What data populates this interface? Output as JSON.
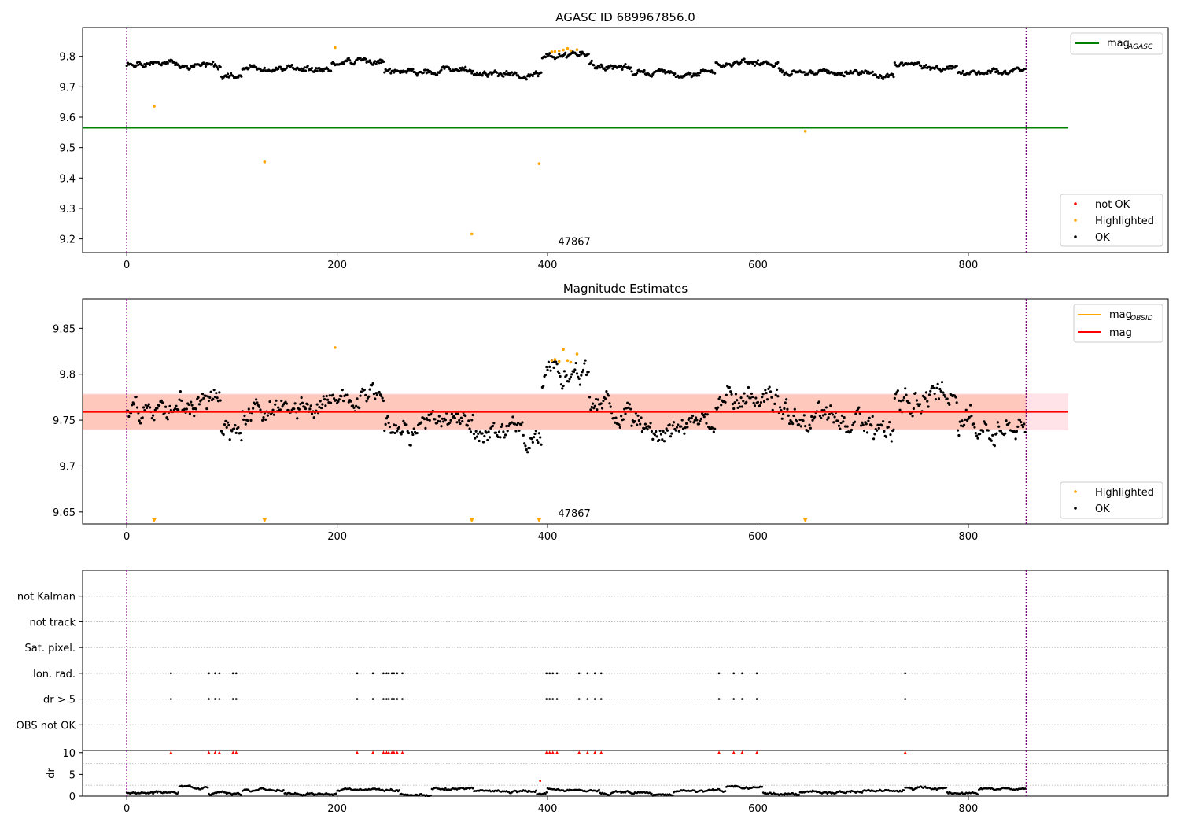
{
  "chart_data": [
    {
      "type": "scatter",
      "title": "AGASC ID 689967856.0",
      "xlim": [
        -42,
        990
      ],
      "ylim": [
        9.155,
        9.895
      ],
      "xticks": [
        0,
        200,
        400,
        600,
        800
      ],
      "yticks": [
        9.2,
        9.3,
        9.4,
        9.5,
        9.6,
        9.7,
        9.8
      ],
      "ytick_labels": [
        "9.2",
        "9.3",
        "9.4",
        "9.5",
        "9.6",
        "9.7",
        "9.8"
      ],
      "vlines": [
        0,
        855
      ],
      "hline": {
        "name": "mag",
        "subscript": "AGASC",
        "y": 9.565,
        "x_range": [
          -42,
          895
        ],
        "color": "#008000"
      },
      "annotation": {
        "text": "47867",
        "x": 410,
        "y": 9.185
      },
      "legend_top": "top-right",
      "legend_bottom": "bottom-right",
      "series": [
        {
          "name": "not OK",
          "color": "#ff0000",
          "x": [],
          "y": []
        },
        {
          "name": "Highlighted",
          "color": "#ffa500",
          "x": [
            26,
            131,
            198,
            328,
            392,
            404,
            407,
            411,
            415,
            419,
            422,
            428,
            645
          ],
          "y": [
            9.636,
            9.453,
            9.829,
            9.216,
            9.447,
            9.815,
            9.816,
            9.818,
            9.821,
            9.826,
            9.819,
            9.822,
            9.554
          ]
        },
        {
          "name": "OK",
          "color": "#000000",
          "n": 855,
          "seed": 1,
          "segments": [
            [
              0,
              40,
              9.77
            ],
            [
              40,
              90,
              9.77
            ],
            [
              90,
              110,
              9.735
            ],
            [
              110,
              195,
              9.76
            ],
            [
              195,
              245,
              9.78
            ],
            [
              245,
              300,
              9.745
            ],
            [
              300,
              330,
              9.755
            ],
            [
              330,
              395,
              9.74
            ],
            [
              395,
              440,
              9.8
            ],
            [
              440,
              480,
              9.765
            ],
            [
              480,
              560,
              9.745
            ],
            [
              560,
              620,
              9.775
            ],
            [
              620,
              710,
              9.75
            ],
            [
              710,
              730,
              9.735
            ],
            [
              730,
              790,
              9.77
            ],
            [
              790,
              855,
              9.745
            ]
          ],
          "noise": 0.013
        }
      ]
    },
    {
      "type": "scatter",
      "title": "Magnitude Estimates",
      "xlim": [
        -42,
        990
      ],
      "ylim": [
        9.637,
        9.882
      ],
      "xticks": [
        0,
        200,
        400,
        600,
        800
      ],
      "yticks": [
        9.65,
        9.7,
        9.75,
        9.8,
        9.85
      ],
      "ytick_labels": [
        "9.65",
        "9.70",
        "9.75",
        "9.80",
        "9.85"
      ],
      "vlines": [
        0,
        855
      ],
      "mag_line": {
        "name": "mag",
        "y": 9.759,
        "band": [
          9.739,
          9.779
        ],
        "x_range": [
          -42,
          895
        ],
        "color": "#ff0000"
      },
      "obsid_line": {
        "name": "mag",
        "subscript": "OBSID",
        "y": 9.759,
        "band": [
          9.74,
          9.778
        ],
        "x_range": [
          -42,
          855
        ],
        "color": "#ffa500"
      },
      "annotation": {
        "text": "47867",
        "x": 410,
        "y": 9.643
      },
      "lower_markers": {
        "color": "#ffa500",
        "x": [
          26,
          131,
          328,
          392,
          645
        ],
        "y": 9.641
      },
      "legend_top": "top-right",
      "legend_bottom": "bottom-right",
      "series": [
        {
          "name": "Highlighted",
          "color": "#ffa500",
          "x": [
            198,
            404,
            407,
            411,
            415,
            419,
            422,
            428
          ],
          "y": [
            9.829,
            9.815,
            9.816,
            9.814,
            9.827,
            9.815,
            9.813,
            9.822
          ]
        },
        {
          "name": "OK",
          "color": "#000000",
          "n": 855,
          "seed": 2,
          "segments": [
            [
              0,
              40,
              9.765
            ],
            [
              40,
              90,
              9.77
            ],
            [
              90,
              110,
              9.735
            ],
            [
              110,
              195,
              9.76
            ],
            [
              195,
              245,
              9.78
            ],
            [
              245,
              300,
              9.745
            ],
            [
              300,
              330,
              9.755
            ],
            [
              330,
              395,
              9.74
            ],
            [
              395,
              440,
              9.8
            ],
            [
              440,
              480,
              9.765
            ],
            [
              480,
              560,
              9.745
            ],
            [
              560,
              620,
              9.775
            ],
            [
              620,
              710,
              9.75
            ],
            [
              710,
              730,
              9.735
            ],
            [
              730,
              790,
              9.77
            ],
            [
              790,
              855,
              9.745
            ]
          ],
          "noise": 0.016
        }
      ]
    },
    {
      "type": "scatter",
      "title": "",
      "xlim": [
        -42,
        990
      ],
      "ylim": [
        0,
        7
      ],
      "xticks": [
        0,
        200,
        400,
        600,
        800
      ],
      "yticks": [
        1,
        2,
        3,
        4,
        5,
        6
      ],
      "ytick_labels": [
        "OBS not OK",
        "dr > 5",
        "Ion. rad.",
        "Sat. pixel.",
        "not track",
        "not Kalman"
      ],
      "vlines": [
        0,
        855
      ],
      "flags": [
        {
          "name": "dr > 5",
          "y": 2,
          "x": [
            42,
            78,
            84,
            88,
            101,
            104,
            219,
            234,
            244,
            247,
            249,
            252,
            254,
            257,
            262,
            399,
            402,
            405,
            409,
            430,
            438,
            445,
            451,
            563,
            577,
            585,
            599,
            740
          ]
        },
        {
          "name": "Ion. rad.",
          "y": 3,
          "x": [
            42,
            78,
            84,
            88,
            101,
            104,
            219,
            234,
            244,
            247,
            249,
            252,
            254,
            257,
            262,
            399,
            402,
            405,
            409,
            430,
            438,
            445,
            451,
            563,
            577,
            585,
            599,
            740
          ]
        }
      ]
    },
    {
      "type": "scatter",
      "title": "",
      "xlim": [
        -42,
        990
      ],
      "ylim": [
        0,
        10.5
      ],
      "xticks": [
        0,
        200,
        400,
        600,
        800
      ],
      "yticks": [
        0,
        5,
        10
      ],
      "ylabel": "dr",
      "vlines": [
        0,
        855
      ],
      "clipped_markers": {
        "color": "#ff0000",
        "y": 10,
        "x": [
          42,
          78,
          84,
          88,
          101,
          104,
          219,
          234,
          244,
          247,
          249,
          252,
          254,
          257,
          262,
          399,
          402,
          405,
          409,
          430,
          438,
          445,
          451,
          563,
          577,
          585,
          599,
          740
        ]
      },
      "outlier": {
        "color": "#ff0000",
        "x": 393,
        "y": 3.5
      },
      "series": [
        {
          "name": "dr",
          "color": "#000000",
          "n": 855,
          "seed": 3,
          "segments": [
            [
              0,
              50,
              0.8
            ],
            [
              50,
              78,
              2.2
            ],
            [
              78,
              110,
              0.6
            ],
            [
              110,
              150,
              1.5
            ],
            [
              150,
              200,
              0.5
            ],
            [
              200,
              260,
              1.3
            ],
            [
              260,
              290,
              0.4
            ],
            [
              290,
              330,
              1.7
            ],
            [
              330,
              390,
              1.2
            ],
            [
              390,
              400,
              0.4
            ],
            [
              400,
              450,
              1.5
            ],
            [
              450,
              500,
              0.8
            ],
            [
              500,
              520,
              0.3
            ],
            [
              520,
              570,
              1.2
            ],
            [
              570,
              605,
              2.0
            ],
            [
              605,
              640,
              0.5
            ],
            [
              640,
              700,
              0.9
            ],
            [
              700,
              740,
              1.3
            ],
            [
              740,
              780,
              1.7
            ],
            [
              780,
              810,
              0.5
            ],
            [
              810,
              855,
              1.6
            ]
          ],
          "noise": 0.35
        }
      ]
    }
  ]
}
